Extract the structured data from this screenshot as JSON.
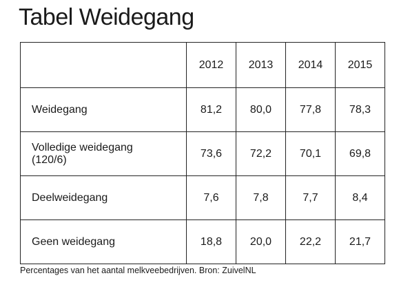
{
  "title": "Tabel Weidegang",
  "table": {
    "header": [
      "",
      "2012",
      "2013",
      "2014",
      "2015"
    ],
    "rows": [
      {
        "label": [
          "Weidegang"
        ],
        "values": [
          "81,2",
          "80,0",
          "77,8",
          "78,3"
        ]
      },
      {
        "label": [
          "Volledige weidegang",
          "(120/6)"
        ],
        "values": [
          "73,6",
          "72,2",
          "70,1",
          "69,8"
        ]
      },
      {
        "label": [
          "Deelweidegang"
        ],
        "values": [
          "7,6",
          "7,8",
          "7,7",
          "8,4"
        ]
      },
      {
        "label": [
          "Geen weidegang"
        ],
        "values": [
          "18,8",
          "20,0",
          "22,2",
          "21,7"
        ]
      }
    ]
  },
  "footnote": "Percentages van het aantal melkveebedrijven. Bron: ZuivelNL"
}
